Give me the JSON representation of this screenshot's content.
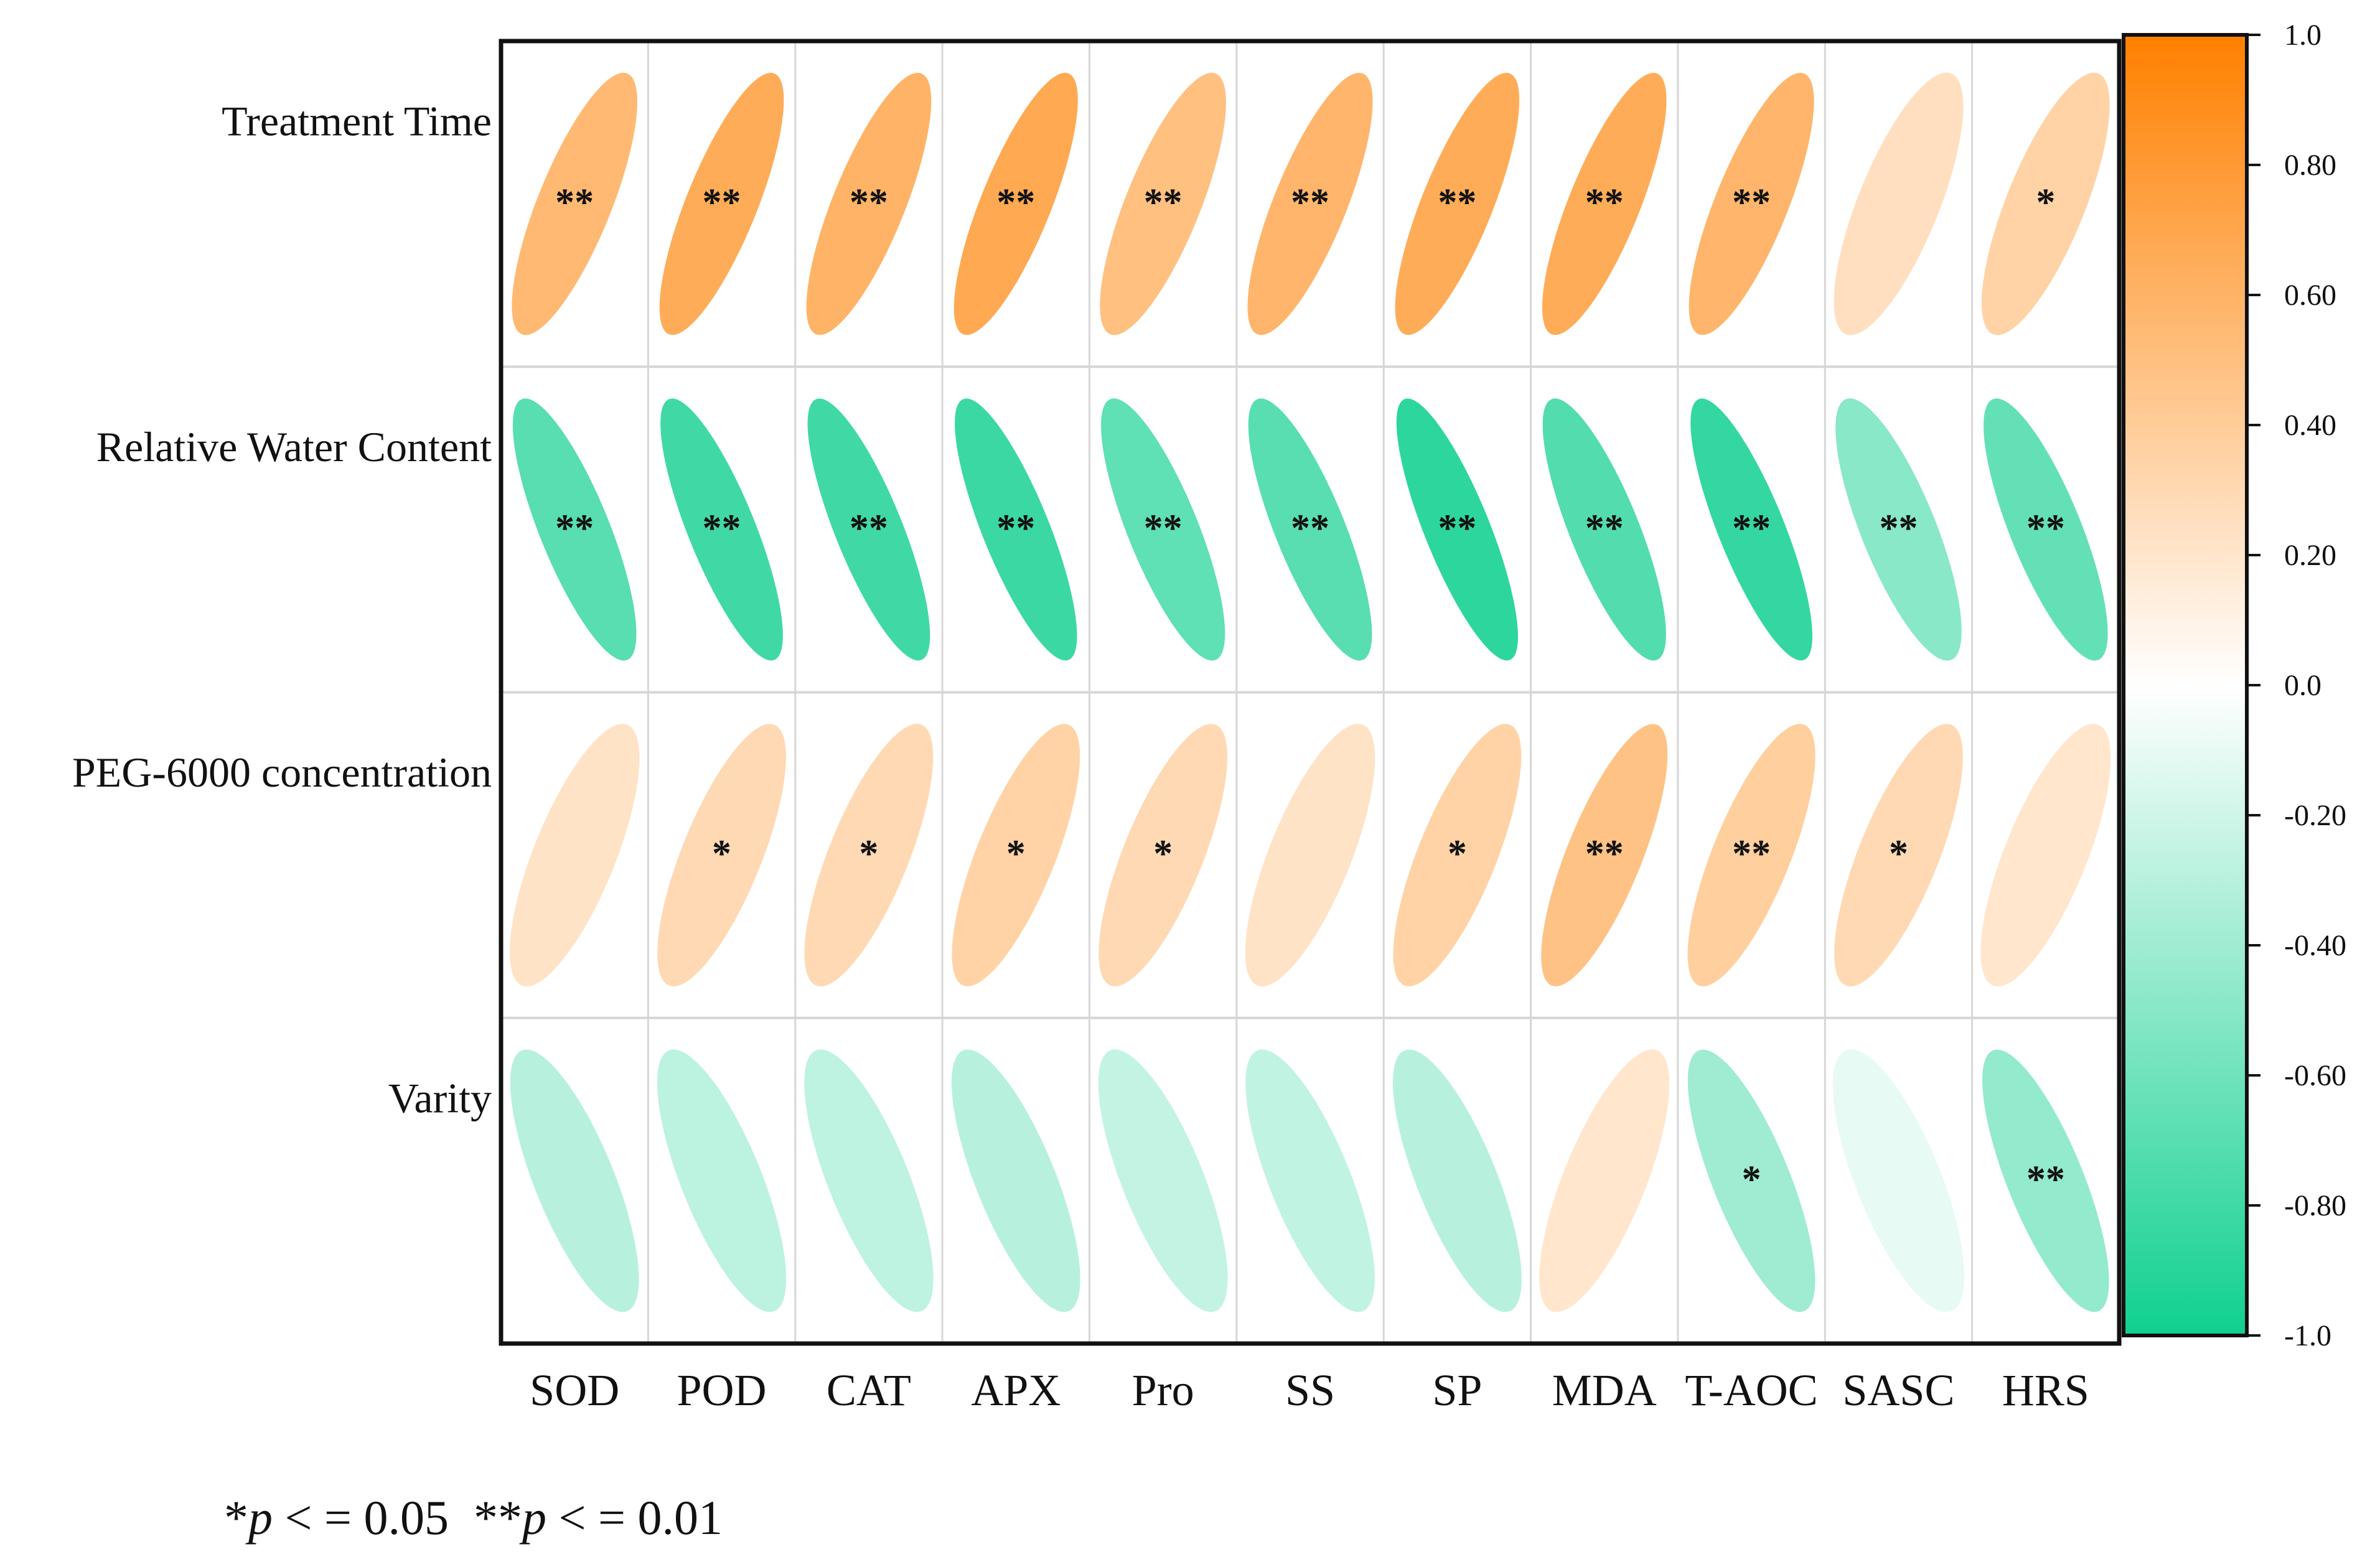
{
  "chart_data": {
    "type": "heatmap",
    "subtype": "correlation-ellipse",
    "rows": [
      "Treatment Time",
      "Relative Water Content",
      "PEG-6000 concentration",
      "Varity"
    ],
    "columns": [
      "SOD",
      "POD",
      "CAT",
      "APX",
      "Pro",
      "SS",
      "SP",
      "MDA",
      "T-AOC",
      "SASC",
      "HRS"
    ],
    "values": [
      [
        0.55,
        0.65,
        0.6,
        0.68,
        0.5,
        0.58,
        0.65,
        0.65,
        0.58,
        0.25,
        0.35
      ],
      [
        -0.7,
        -0.8,
        -0.8,
        -0.82,
        -0.67,
        -0.7,
        -0.88,
        -0.72,
        -0.85,
        -0.5,
        -0.65
      ],
      [
        0.22,
        0.3,
        0.3,
        0.35,
        0.3,
        0.22,
        0.35,
        0.48,
        0.38,
        0.3,
        0.2
      ],
      [
        -0.3,
        -0.28,
        -0.27,
        -0.3,
        -0.25,
        -0.26,
        -0.3,
        0.2,
        -0.4,
        -0.1,
        -0.45
      ]
    ],
    "significance": [
      [
        "**",
        "**",
        "**",
        "**",
        "**",
        "**",
        "**",
        "**",
        "**",
        "",
        "*"
      ],
      [
        "**",
        "**",
        "**",
        "**",
        "**",
        "**",
        "**",
        "**",
        "**",
        "**",
        "**"
      ],
      [
        "",
        "*",
        "*",
        "*",
        "*",
        "",
        "*",
        "**",
        "**",
        "*",
        ""
      ],
      [
        "",
        "",
        "",
        "",
        "",
        "",
        "",
        "",
        "*",
        "",
        "**"
      ]
    ],
    "colorbar": {
      "range": [
        -1.0,
        1.0
      ],
      "ticks": [
        "1.0",
        "0.80",
        "0.60",
        "0.40",
        "0.20",
        "0.0",
        "-0.20",
        "-0.40",
        "-0.60",
        "-0.80",
        "-1.0"
      ],
      "tick_values": [
        1.0,
        0.8,
        0.6,
        0.4,
        0.2,
        0.0,
        -0.2,
        -0.4,
        -0.6,
        -0.8,
        -1.0
      ],
      "positive_color": "#FF8000",
      "zero_color": "#FFFFFF",
      "negative_color": "#10D090"
    },
    "footnote": {
      "single_star": "*",
      "single_p": "p",
      "single_text": " < = 0.05",
      "double_star": "**",
      "double_p": "p",
      "double_text": " < = 0.01"
    }
  }
}
